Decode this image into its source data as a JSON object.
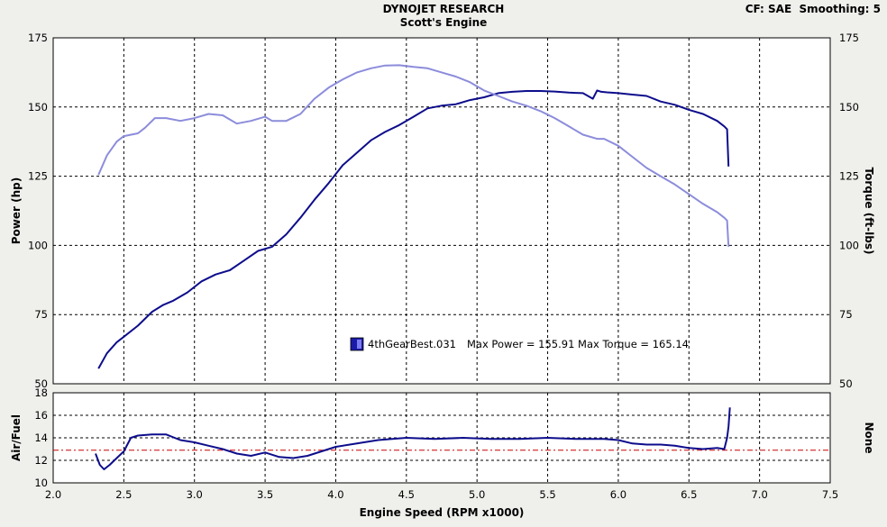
{
  "header": {
    "title": "DYNOJET RESEARCH",
    "subtitle": "Scott's Engine",
    "right_info": "CF: SAE  Smoothing: 5"
  },
  "legend": {
    "run_name": "4thGearBest.031",
    "summary": "Max Power = 155.91 Max Torque = 165.14",
    "swatch_color": "#1a1aa8"
  },
  "colors": {
    "power": "#0d0d8c",
    "torque": "#8c8cdc",
    "afr": "#0d0d8c",
    "afr_target": "#cc0000",
    "plot_bg": "#ffffff"
  },
  "chart_data": [
    {
      "type": "line",
      "name": "power-torque",
      "ylabel": "Power (hp)",
      "ylabel_right": "Torque (ft-lbs)",
      "xlim": [
        2.0,
        7.5
      ],
      "ylim": [
        50,
        175
      ],
      "x_ticks": [
        "2.0",
        "2.5",
        "3.0",
        "3.5",
        "4.0",
        "4.5",
        "5.0",
        "5.5",
        "6.0",
        "6.5",
        "7.0",
        "7.5"
      ],
      "y_ticks": [
        "50",
        "75",
        "100",
        "125",
        "150",
        "175"
      ],
      "y_ticks_right": [
        "50",
        "75",
        "100",
        "125",
        "150",
        "175"
      ],
      "grid": true,
      "series": [
        {
          "name": "Power",
          "color": "#0d0d8c",
          "x": [
            2.32,
            2.38,
            2.45,
            2.5,
            2.6,
            2.7,
            2.78,
            2.85,
            2.95,
            3.05,
            3.15,
            3.25,
            3.35,
            3.45,
            3.55,
            3.65,
            3.75,
            3.85,
            3.95,
            4.05,
            4.15,
            4.25,
            4.35,
            4.45,
            4.55,
            4.65,
            4.75,
            4.85,
            4.95,
            5.05,
            5.15,
            5.25,
            5.35,
            5.45,
            5.55,
            5.65,
            5.75,
            5.82,
            5.85,
            5.88,
            5.92,
            6.0,
            6.1,
            6.2,
            6.3,
            6.4,
            6.5,
            6.6,
            6.7,
            6.75,
            6.77,
            6.78
          ],
          "y": [
            55.5,
            61,
            65,
            67,
            71,
            76,
            78.5,
            80,
            83,
            87,
            89.5,
            91,
            94.5,
            98,
            99.5,
            104,
            110,
            116.5,
            122.5,
            129,
            133.5,
            138,
            141,
            143.5,
            146.5,
            149.5,
            150.5,
            151,
            152.5,
            153.5,
            155,
            155.5,
            155.8,
            155.8,
            155.6,
            155.2,
            155,
            153,
            156,
            155.5,
            155.3,
            155,
            154.5,
            154,
            152,
            150.8,
            149,
            147.5,
            145,
            143,
            142,
            128.5
          ]
        },
        {
          "name": "Torque",
          "color": "#8c8cdc",
          "x": [
            2.32,
            2.38,
            2.45,
            2.5,
            2.6,
            2.65,
            2.72,
            2.8,
            2.9,
            3.0,
            3.1,
            3.2,
            3.3,
            3.4,
            3.5,
            3.55,
            3.65,
            3.75,
            3.85,
            3.95,
            4.05,
            4.15,
            4.25,
            4.35,
            4.45,
            4.55,
            4.65,
            4.75,
            4.85,
            4.95,
            5.05,
            5.15,
            5.25,
            5.35,
            5.45,
            5.55,
            5.65,
            5.75,
            5.85,
            5.9,
            6.0,
            6.1,
            6.2,
            6.3,
            6.4,
            6.5,
            6.6,
            6.7,
            6.75,
            6.77,
            6.78
          ],
          "y": [
            125.5,
            132.5,
            137.5,
            139.5,
            140.5,
            142.5,
            146,
            146,
            145,
            146,
            147.5,
            147,
            144,
            145,
            146.5,
            145,
            145,
            147.5,
            153,
            157,
            160,
            162.5,
            164,
            165,
            165.1,
            164.5,
            164,
            162.5,
            161,
            159,
            156,
            154,
            152,
            150.5,
            148.5,
            146,
            143,
            140,
            138.5,
            138.5,
            136,
            132,
            128,
            125,
            122,
            118.5,
            115,
            112,
            110,
            109,
            99.5
          ]
        }
      ]
    },
    {
      "type": "line",
      "name": "air-fuel",
      "ylabel": "Air/Fuel",
      "ylabel_right": "None",
      "xlabel": "Engine Speed (RPM x1000)",
      "xlim": [
        2.0,
        7.5
      ],
      "ylim": [
        10,
        18
      ],
      "x_ticks": [
        "2.0",
        "2.5",
        "3.0",
        "3.5",
        "4.0",
        "4.5",
        "5.0",
        "5.5",
        "6.0",
        "6.5",
        "7.0",
        "7.5"
      ],
      "y_ticks": [
        "10",
        "12",
        "14",
        "16",
        "18"
      ],
      "grid": true,
      "target_afr": 12.9,
      "series": [
        {
          "name": "AFR",
          "color": "#0d0d8c",
          "x": [
            2.3,
            2.33,
            2.36,
            2.4,
            2.45,
            2.5,
            2.55,
            2.6,
            2.7,
            2.8,
            2.9,
            3.0,
            3.1,
            3.2,
            3.3,
            3.4,
            3.5,
            3.6,
            3.7,
            3.8,
            3.9,
            4.0,
            4.1,
            4.2,
            4.3,
            4.4,
            4.5,
            4.7,
            4.9,
            5.1,
            5.3,
            5.5,
            5.7,
            5.9,
            6.0,
            6.1,
            6.2,
            6.3,
            6.4,
            6.5,
            6.6,
            6.7,
            6.75,
            6.77,
            6.78,
            6.79
          ],
          "y": [
            12.6,
            11.6,
            11.2,
            11.6,
            12.2,
            12.8,
            14.0,
            14.2,
            14.3,
            14.3,
            13.8,
            13.6,
            13.3,
            13.0,
            12.6,
            12.4,
            12.7,
            12.3,
            12.2,
            12.4,
            12.8,
            13.2,
            13.4,
            13.6,
            13.8,
            13.9,
            14.0,
            13.9,
            14.0,
            13.9,
            13.9,
            14.0,
            13.9,
            13.9,
            13.8,
            13.5,
            13.4,
            13.4,
            13.3,
            13.1,
            13.0,
            13.1,
            13.0,
            14.0,
            15.0,
            16.7
          ]
        }
      ]
    }
  ]
}
